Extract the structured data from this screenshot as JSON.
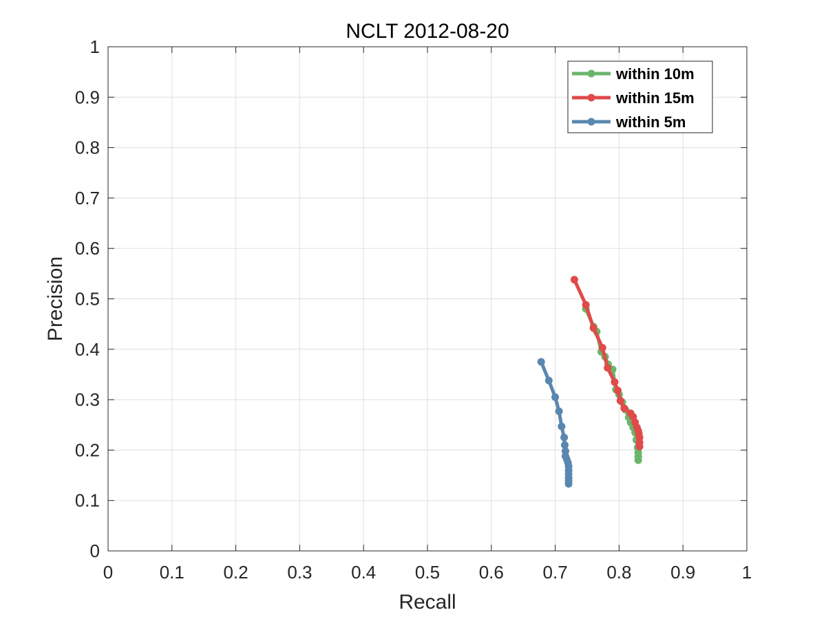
{
  "chart_data": {
    "type": "line",
    "title": "NCLT 2012-08-20",
    "xlabel": "Recall",
    "ylabel": "Precision",
    "xlim": [
      0,
      1
    ],
    "ylim": [
      0,
      1
    ],
    "xticks": [
      "0",
      "0.1",
      "0.2",
      "0.3",
      "0.4",
      "0.5",
      "0.6",
      "0.7",
      "0.8",
      "0.9",
      "1"
    ],
    "yticks": [
      "0",
      "0.1",
      "0.2",
      "0.3",
      "0.4",
      "0.5",
      "0.6",
      "0.7",
      "0.8",
      "0.9",
      "1"
    ],
    "grid": true,
    "legend_position": "top-right",
    "series": [
      {
        "name": "within 10m",
        "color": "#6bb56b",
        "x": [
          0.748,
          0.76,
          0.765,
          0.772,
          0.778,
          0.783,
          0.79,
          0.795,
          0.8,
          0.805,
          0.81,
          0.815,
          0.818,
          0.822,
          0.825,
          0.827,
          0.829,
          0.83,
          0.83,
          0.83
        ],
        "y": [
          0.48,
          0.445,
          0.435,
          0.395,
          0.385,
          0.37,
          0.36,
          0.32,
          0.31,
          0.295,
          0.28,
          0.265,
          0.255,
          0.245,
          0.235,
          0.22,
          0.205,
          0.195,
          0.187,
          0.18
        ]
      },
      {
        "name": "within 15m",
        "color": "#e04a4a",
        "x": [
          0.73,
          0.748,
          0.76,
          0.774,
          0.782,
          0.793,
          0.798,
          0.802,
          0.808,
          0.818,
          0.822,
          0.825,
          0.828,
          0.83,
          0.831,
          0.832,
          0.832,
          0.832
        ],
        "y": [
          0.538,
          0.488,
          0.442,
          0.403,
          0.363,
          0.335,
          0.318,
          0.298,
          0.283,
          0.273,
          0.266,
          0.255,
          0.245,
          0.238,
          0.232,
          0.225,
          0.215,
          0.207
        ]
      },
      {
        "name": "within 5m",
        "color": "#5a87b0",
        "x": [
          0.678,
          0.69,
          0.7,
          0.706,
          0.71,
          0.714,
          0.715,
          0.716,
          0.716,
          0.718,
          0.72,
          0.721,
          0.721,
          0.721,
          0.721,
          0.721,
          0.721
        ],
        "y": [
          0.375,
          0.338,
          0.305,
          0.277,
          0.247,
          0.225,
          0.21,
          0.198,
          0.188,
          0.182,
          0.175,
          0.168,
          0.16,
          0.152,
          0.145,
          0.139,
          0.133
        ]
      }
    ]
  }
}
